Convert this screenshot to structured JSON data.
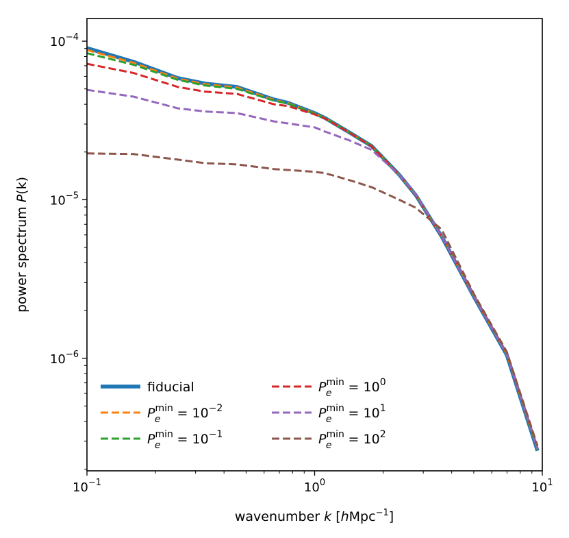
{
  "chart_data": {
    "type": "line",
    "xlabel": {
      "text": "wavenumber ",
      "var": "k",
      "unit_open": " [",
      "unit_var": "h",
      "unit": "Mpc",
      "unit_exp": "−1",
      "unit_close": "]"
    },
    "ylabel": {
      "text": "power spectrum ",
      "var": "P",
      "paren": "(k)"
    },
    "xscale": "log",
    "yscale": "log",
    "xlim": [
      0.1,
      10
    ],
    "ylim": [
      1.95e-07,
      0.000139
    ],
    "grid": false,
    "legend_position": "lower-left",
    "x_ticks": [
      {
        "value": 0.1,
        "base": "10",
        "exp": "−1"
      },
      {
        "value": 1,
        "base": "10",
        "exp": "0"
      },
      {
        "value": 10,
        "base": "10",
        "exp": "1"
      }
    ],
    "y_ticks": [
      {
        "value": 0.0001,
        "base": "10",
        "exp": "−4"
      },
      {
        "value": 1e-05,
        "base": "10",
        "exp": "−5"
      },
      {
        "value": 1e-06,
        "base": "10",
        "exp": "−6"
      }
    ],
    "x": [
      0.1,
      0.16,
      0.251,
      0.331,
      0.456,
      0.662,
      0.762,
      1.0,
      1.11,
      1.42,
      1.78,
      2.35,
      2.78,
      3.61,
      5.04,
      6.98,
      9.53
    ],
    "series": [
      {
        "name": "fiducial",
        "color": "#1f77b4",
        "style": "solid",
        "values": [
          9.05e-05,
          7.42e-05,
          5.85e-05,
          5.4e-05,
          5.14e-05,
          4.29e-05,
          4.09e-05,
          3.52e-05,
          3.28e-05,
          2.66e-05,
          2.18e-05,
          1.44e-05,
          1.07e-05,
          5.88e-06,
          2.4e-06,
          1.05e-06,
          2.61e-07
        ]
      },
      {
        "name": {
          "var": "P",
          "sub": "e",
          "sup": "min",
          "eq": " = 10",
          "exp": "−2"
        },
        "color": "#ff7f0e",
        "style": "dashed",
        "values": [
          8.8e-05,
          7.3e-05,
          5.8e-05,
          5.35e-05,
          5.1e-05,
          4.27e-05,
          4.07e-05,
          3.51e-05,
          3.28e-05,
          2.66e-05,
          2.18e-05,
          1.44e-05,
          1.07e-05,
          5.9e-06,
          2.42e-06,
          1.06e-06,
          2.65e-07
        ]
      },
      {
        "name": {
          "var": "P",
          "sub": "e",
          "sup": "min",
          "eq": " = 10",
          "exp": "−1"
        },
        "color": "#2ca02c",
        "style": "dashed",
        "values": [
          8.4e-05,
          7.1e-05,
          5.7e-05,
          5.25e-05,
          5e-05,
          4.22e-05,
          4.04e-05,
          3.5e-05,
          3.27e-05,
          2.66e-05,
          2.18e-05,
          1.44e-05,
          1.07e-05,
          5.9e-06,
          2.42e-06,
          1.06e-06,
          2.65e-07
        ]
      },
      {
        "name": {
          "var": "P",
          "sub": "e",
          "sup": "min",
          "eq": " = 10",
          "exp": "0"
        },
        "color": "#d62728",
        "style": "dashed",
        "values": [
          7.2e-05,
          6.3e-05,
          5.14e-05,
          4.8e-05,
          4.65e-05,
          4e-05,
          3.9e-05,
          3.45e-05,
          3.25e-05,
          2.65e-05,
          2.17e-05,
          1.44e-05,
          1.07e-05,
          5.9e-06,
          2.44e-06,
          1.07e-06,
          2.7e-07
        ]
      },
      {
        "name": {
          "var": "P",
          "sub": "e",
          "sup": "min",
          "eq": " = 10",
          "exp": "1"
        },
        "color": "#9467bd",
        "style": "dashed",
        "values": [
          4.93e-05,
          4.47e-05,
          3.77e-05,
          3.6e-05,
          3.52e-05,
          3.12e-05,
          3.03e-05,
          2.86e-05,
          2.69e-05,
          2.37e-05,
          2.06e-05,
          1.44e-05,
          1.08e-05,
          5.9e-06,
          2.42e-06,
          1.06e-06,
          2.68e-07
        ]
      },
      {
        "name": {
          "var": "P",
          "sub": "e",
          "sup": "min",
          "eq": " = 10",
          "exp": "2"
        },
        "color": "#8c564b",
        "style": "dashed",
        "values": [
          1.96e-05,
          1.94e-05,
          1.79e-05,
          1.7e-05,
          1.67e-05,
          1.56e-05,
          1.54e-05,
          1.5e-05,
          1.47e-05,
          1.33e-05,
          1.2e-05,
          1e-05,
          8.9e-06,
          6.5e-06,
          2.5e-06,
          1.1e-06,
          2.8e-07
        ]
      }
    ]
  }
}
